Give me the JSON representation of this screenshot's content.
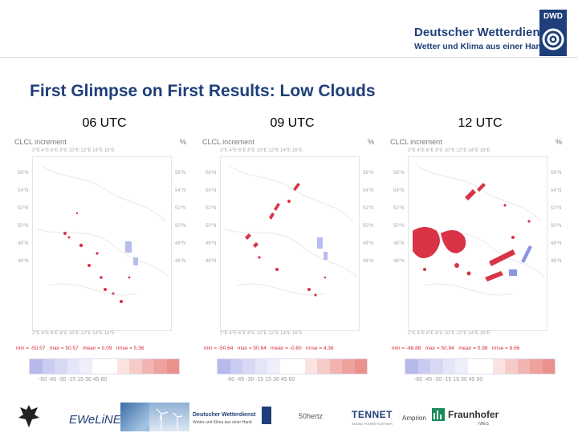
{
  "header": {
    "org_name": "Deutscher Wetterdienst",
    "org_slogan": "Wetter und Klima aus einer Hand",
    "logo_text": "DWD",
    "brand_color": "#1f3f7a"
  },
  "title": "First Glimpse on First Results: Low Clouds",
  "panels": [
    {
      "time": "06 UTC",
      "label_left": "CLCL increment",
      "label_right": "%",
      "stats": {
        "min": "min = -50.57",
        "max": "max = 50.57",
        "mean": "mean = 0.09",
        "rmse": "rmse = 5.36"
      }
    },
    {
      "time": "09 UTC",
      "label_left": "CLCL increment",
      "label_right": "%",
      "stats": {
        "min": "min = -50.64",
        "max": "max = 50.64",
        "mean": "mean = -0.60",
        "rmse": "rmse = 4.36"
      }
    },
    {
      "time": "12 UTC",
      "label_left": "CLCL increment",
      "label_right": "%",
      "stats": {
        "min": "min = -48.88",
        "max": "max = 50.94",
        "mean": "mean = 0.98",
        "rmse": "rmse = 8.66"
      }
    }
  ],
  "map_ticks": {
    "lon": "2°E  4°E  6°E  8°E  10°E 12°E 14°E 16°E",
    "lat": [
      "56°N",
      "54°N",
      "52°N",
      "50°N",
      "48°N",
      "46°N"
    ]
  },
  "colorbar": {
    "ticks": "-60  -45  -30  -15  15  30  45  60",
    "colors": [
      "#b7b9ea",
      "#c9cbf0",
      "#d7d9f3",
      "#e4e5f7",
      "#eeeffa",
      "#ffffff",
      "#ffffff",
      "#fbe3e1",
      "#f6cbc7",
      "#f2b4b0",
      "#eea29d",
      "#ea918b"
    ]
  },
  "partners": {
    "ewelinE": "EWeLiNE",
    "dwd_name": "Deutscher Wetterdienst",
    "dwd_slogan": "Wetter und Klima aus einer Hand",
    "hertz": "50hertz",
    "tennet": "TENNET",
    "tennet_sub": "TAKING POWER FURTHER",
    "amprion": "Amprion",
    "fraunhofer": "Fraunhofer",
    "iwes": "IWES"
  }
}
